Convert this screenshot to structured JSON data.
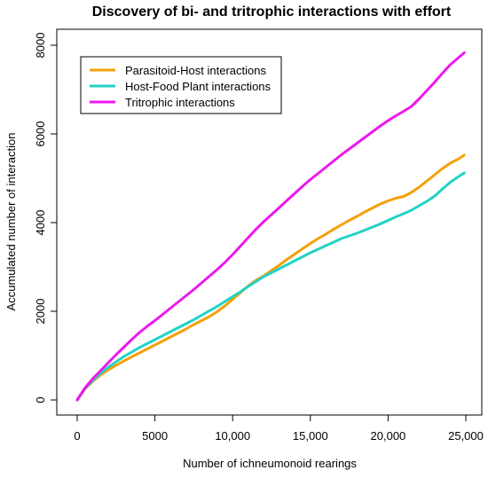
{
  "chart_data": {
    "type": "line",
    "title": "Discovery of bi- and tritrophic interactions with effort",
    "xlabel": "Number of ichneumonoid rearings",
    "ylabel": "Accumulated number of interaction",
    "xlim": [
      0,
      25000
    ],
    "ylim": [
      0,
      8000
    ],
    "xticks": [
      0,
      5000,
      10000,
      15000,
      20000,
      25000
    ],
    "xtick_labels": [
      "0",
      "5000",
      "10,000",
      "15,000",
      "20,000",
      "25,000"
    ],
    "yticks": [
      0,
      2000,
      4000,
      6000,
      8000
    ],
    "ytick_labels": [
      "0",
      "2000",
      "4000",
      "6000",
      "8000"
    ],
    "grid": false,
    "legend_position": "top-left",
    "series": [
      {
        "name": "Parasitoid-Host interactions",
        "color": "#f5a00a",
        "x": [
          0,
          500,
          1000,
          1500,
          2000,
          2500,
          3000,
          3500,
          4000,
          4500,
          5000,
          5500,
          6000,
          6500,
          7000,
          7500,
          8000,
          8500,
          9000,
          9500,
          10000,
          10500,
          11000,
          11500,
          12000,
          12500,
          13000,
          13500,
          14000,
          14500,
          15000,
          15500,
          16000,
          16500,
          17000,
          17500,
          18000,
          18500,
          19000,
          19500,
          20000,
          20500,
          21000,
          21500,
          22000,
          22500,
          23000,
          23500,
          24000,
          24500,
          24900
        ],
        "y": [
          0,
          250,
          420,
          560,
          680,
          780,
          880,
          970,
          1060,
          1150,
          1240,
          1330,
          1420,
          1510,
          1600,
          1700,
          1790,
          1880,
          1990,
          2120,
          2270,
          2420,
          2570,
          2700,
          2800,
          2920,
          3040,
          3170,
          3290,
          3410,
          3530,
          3640,
          3740,
          3850,
          3950,
          4050,
          4140,
          4240,
          4330,
          4420,
          4490,
          4550,
          4590,
          4680,
          4800,
          4940,
          5080,
          5220,
          5340,
          5430,
          5520
        ]
      },
      {
        "name": "Host-Food Plant interactions",
        "color": "#22d3c5",
        "x": [
          0,
          500,
          1000,
          1500,
          2000,
          2500,
          3000,
          3500,
          4000,
          4500,
          5000,
          5500,
          6000,
          6500,
          7000,
          7500,
          8000,
          8500,
          9000,
          9500,
          10000,
          10500,
          11000,
          11500,
          12000,
          12500,
          13000,
          13500,
          14000,
          14500,
          15000,
          15500,
          16000,
          16500,
          17000,
          17500,
          18000,
          18500,
          19000,
          19500,
          20000,
          20500,
          21000,
          21500,
          22000,
          22500,
          23000,
          23500,
          24000,
          24500,
          24900
        ],
        "y": [
          0,
          260,
          440,
          600,
          740,
          860,
          980,
          1080,
          1180,
          1270,
          1360,
          1450,
          1540,
          1630,
          1720,
          1810,
          1910,
          2010,
          2110,
          2220,
          2330,
          2440,
          2560,
          2670,
          2780,
          2870,
          2960,
          3050,
          3140,
          3230,
          3320,
          3400,
          3480,
          3560,
          3640,
          3700,
          3760,
          3830,
          3900,
          3970,
          4050,
          4130,
          4200,
          4280,
          4380,
          4480,
          4600,
          4760,
          4910,
          5030,
          5120
        ]
      },
      {
        "name": "Tritrophic interactions",
        "color": "#ee18ee",
        "x": [
          0,
          500,
          1000,
          1500,
          2000,
          2500,
          3000,
          3500,
          4000,
          4500,
          5000,
          5500,
          6000,
          6500,
          7000,
          7500,
          8000,
          8500,
          9000,
          9500,
          10000,
          10500,
          11000,
          11500,
          12000,
          12500,
          13000,
          13500,
          14000,
          14500,
          15000,
          15500,
          16000,
          16500,
          17000,
          17500,
          18000,
          18500,
          19000,
          19500,
          20000,
          20500,
          21000,
          21500,
          22000,
          22500,
          23000,
          23500,
          24000,
          24500,
          24900
        ],
        "y": [
          0,
          270,
          480,
          660,
          840,
          1020,
          1190,
          1360,
          1520,
          1660,
          1790,
          1930,
          2070,
          2210,
          2350,
          2490,
          2640,
          2790,
          2940,
          3100,
          3280,
          3470,
          3660,
          3850,
          4020,
          4180,
          4340,
          4500,
          4660,
          4820,
          4970,
          5110,
          5250,
          5390,
          5530,
          5660,
          5790,
          5920,
          6050,
          6180,
          6300,
          6410,
          6510,
          6620,
          6790,
          6980,
          7170,
          7370,
          7560,
          7710,
          7830
        ]
      }
    ]
  }
}
